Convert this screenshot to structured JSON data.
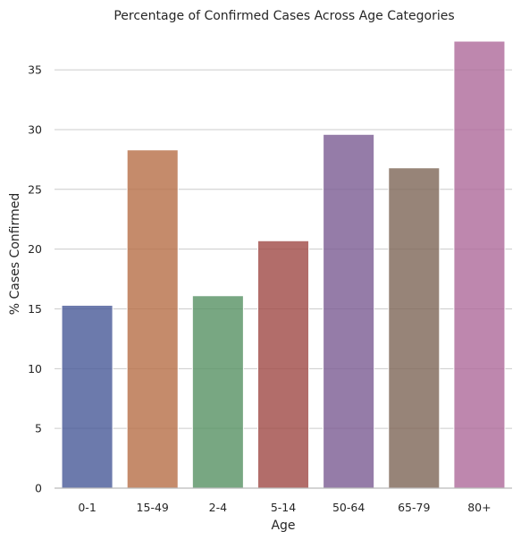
{
  "chart_data": {
    "type": "bar",
    "title": "Percentage of Confirmed Cases Across Age Categories",
    "xlabel": "Age",
    "ylabel": "% Cases Confirmed",
    "categories": [
      "0-1",
      "15-49",
      "2-4",
      "5-14",
      "50-64",
      "65-79",
      "80+"
    ],
    "values": [
      15.3,
      28.3,
      16.1,
      20.7,
      29.6,
      26.8,
      37.4
    ],
    "colors": [
      "#4c5d9a",
      "#b8714a",
      "#5a9466",
      "#a14d49",
      "#7e5f95",
      "#80695a",
      "#b06d9c"
    ],
    "ylim": [
      0,
      38
    ],
    "yticks": [
      0,
      5,
      10,
      15,
      20,
      25,
      30,
      35
    ],
    "grid": true,
    "grid_color": "#cccccc",
    "axis_color": "#bbbbbb",
    "bar_opacity": 0.82
  }
}
